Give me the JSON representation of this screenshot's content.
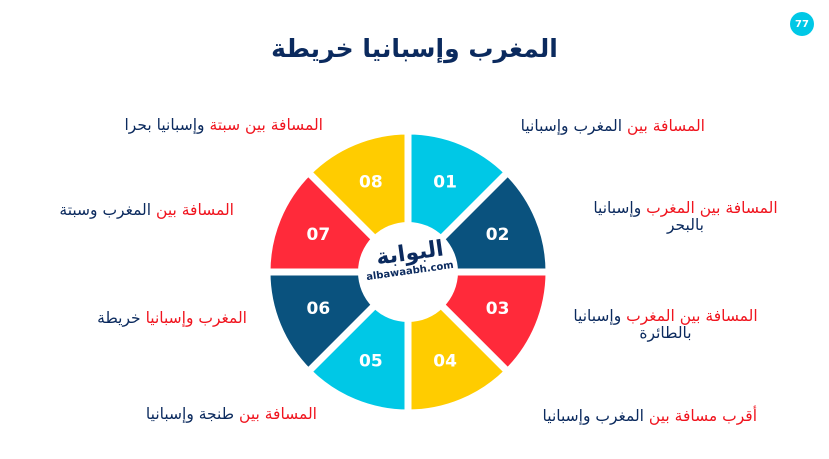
{
  "page_number": "77",
  "title": "المغرب وإسبانيا خريطة",
  "logo": {
    "arabic": "البوابة",
    "latin": "albawaabh.com"
  },
  "colors": {
    "cyan": "#00c8e6",
    "navy": "#0a527e",
    "red": "#ff2a3a",
    "yellow": "#ffcc00"
  },
  "segments": [
    {
      "number": "01",
      "color": "#00c8e6",
      "label_red": "المسافة بين",
      "label_navy": "المغرب وإسبانيا"
    },
    {
      "number": "02",
      "color": "#0a527e",
      "label_red": "المسافة بين المغرب",
      "label_navy": "وإسبانيا بالبحر"
    },
    {
      "number": "03",
      "color": "#ff2a3a",
      "label_red": "المسافة بين المغرب",
      "label_navy": "وإسبانيا بالطائرة"
    },
    {
      "number": "04",
      "color": "#ffcc00",
      "label_red": "أقرب مسافة بين",
      "label_navy": "المغرب وإسبانيا"
    },
    {
      "number": "05",
      "color": "#00c8e6",
      "label_red": "المسافة بين",
      "label_navy": "طنجة وإسبانيا"
    },
    {
      "number": "06",
      "color": "#0a527e",
      "label_red": "المغرب وإسبانيا",
      "label_navy": "خريطة"
    },
    {
      "number": "07",
      "color": "#ff2a3a",
      "label_red": "المسافة بين",
      "label_navy": "المغرب وسبتة"
    },
    {
      "number": "08",
      "color": "#ffcc00",
      "label_red": "المسافة بين سبتة",
      "label_navy": "وإسبانيا بحرا"
    }
  ]
}
